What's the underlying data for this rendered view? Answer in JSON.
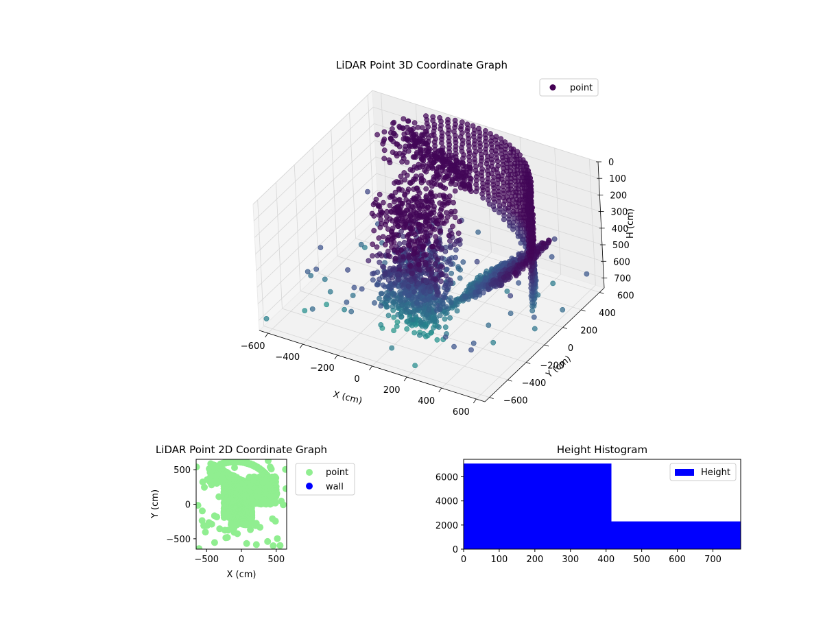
{
  "chart_data": [
    {
      "type": "scatter",
      "title": "LiDAR Point 3D Coordinate Graph",
      "xlabel": "X (cm)",
      "ylabel": "Y (cm)",
      "zlabel": "H (cm)",
      "legend": {
        "placement": "top-right",
        "entries": [
          "point"
        ]
      },
      "x_ticks": [
        "−600",
        "−400",
        "−200",
        "0",
        "200",
        "400",
        "600"
      ],
      "y_ticks": [
        "−600",
        "−400",
        "−200",
        "0",
        "200",
        "400",
        "600"
      ],
      "z_ticks": [
        "0",
        "100",
        "200",
        "300",
        "400",
        "500",
        "600",
        "700"
      ],
      "xlim": [
        -650,
        650
      ],
      "ylim": [
        -650,
        650
      ],
      "zlim": [
        0,
        760
      ],
      "z_inverted": true,
      "grid": true,
      "colormap": "viridis",
      "series": [
        {
          "name": "point",
          "marker_color": "#440154",
          "clusters": [
            {
              "region": "curved-wall-right",
              "x": [
                -200,
                650
              ],
              "y": [
                350,
                650
              ],
              "h": [
                0,
                700
              ]
            },
            {
              "region": "upper-arc-left",
              "x": [
                -450,
                100
              ],
              "y": [
                250,
                650
              ],
              "h": [
                0,
                200
              ]
            },
            {
              "region": "central-column",
              "x": [
                -250,
                50
              ],
              "y": [
                -200,
                300
              ],
              "h": [
                100,
                700
              ]
            },
            {
              "region": "lower-mass",
              "x": [
                -150,
                150
              ],
              "y": [
                -300,
                0
              ],
              "h": [
                400,
                760
              ]
            },
            {
              "region": "right-ramp",
              "x": [
                100,
                500
              ],
              "y": [
                0,
                400
              ],
              "h": [
                350,
                700
              ]
            }
          ]
        }
      ]
    },
    {
      "type": "scatter",
      "title": "LiDAR Point 2D Coordinate Graph",
      "xlabel": "X (cm)",
      "ylabel": "Y (cm)",
      "xlim": [
        -650,
        650
      ],
      "ylim": [
        -650,
        650
      ],
      "x_ticks": [
        "−500",
        "0",
        "500"
      ],
      "y_ticks": [
        "−500",
        "0",
        "500"
      ],
      "legend": {
        "placement": "outside-right",
        "entries": [
          "point",
          "wall"
        ]
      },
      "series": [
        {
          "name": "point",
          "color": "#90ee90"
        },
        {
          "name": "wall",
          "color": "#0000ff",
          "points": []
        }
      ]
    },
    {
      "type": "bar",
      "title": "Height Histogram",
      "xlabel": "",
      "ylabel": "",
      "x_ticks": [
        "0",
        "100",
        "200",
        "300",
        "400",
        "500",
        "600",
        "700"
      ],
      "y_ticks": [
        "0",
        "2000",
        "4000",
        "6000"
      ],
      "xlim": [
        0,
        778
      ],
      "ylim": [
        0,
        7450
      ],
      "legend": {
        "placement": "top-right",
        "entries": [
          "Height"
        ]
      },
      "series": [
        {
          "name": "Height",
          "color": "#0000ff",
          "bins": [
            {
              "from": 0,
              "to": 415,
              "count": 7100
            },
            {
              "from": 415,
              "to": 778,
              "count": 2300
            }
          ]
        }
      ]
    }
  ]
}
